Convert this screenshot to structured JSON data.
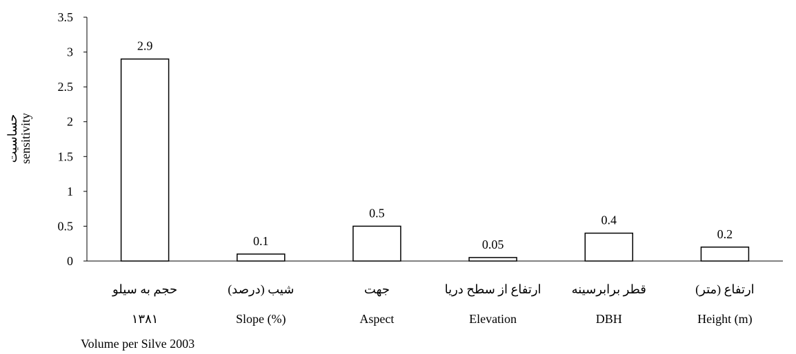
{
  "chart_data": {
    "type": "bar",
    "categories": [
      {
        "fa": "حجم به سیلو",
        "fa2": "۱۳۸۱",
        "en": "Volume per Silve 2003"
      },
      {
        "fa": "شیب (درصد)",
        "en": "Slope (%)"
      },
      {
        "fa": "جهت",
        "en": "Aspect"
      },
      {
        "fa": "ارتفاع از سطح دریا",
        "en": "Elevation"
      },
      {
        "fa": "قطر برابرسینه",
        "en": "DBH"
      },
      {
        "fa": "ارتفاع (متر)",
        "en": "Height (m)"
      }
    ],
    "values": [
      2.9,
      0.1,
      0.5,
      0.05,
      0.4,
      0.2
    ],
    "data_labels": [
      "2.9",
      "0.1",
      "0.5",
      "0.05",
      "0.4",
      "0.2"
    ],
    "yticks": [
      "0",
      "0.5",
      "1",
      "1.5",
      "2",
      "2.5",
      "3",
      "3.5"
    ],
    "ylim": [
      0,
      3.5
    ],
    "ylabel": {
      "fa": "حساسیت",
      "en": "sensitivity"
    },
    "xlabel": "",
    "title": "",
    "grid": false,
    "legend": "none",
    "colors": {
      "bar_fill": "#ffffff",
      "bar_stroke": "#000000",
      "axis": "#000000"
    }
  }
}
